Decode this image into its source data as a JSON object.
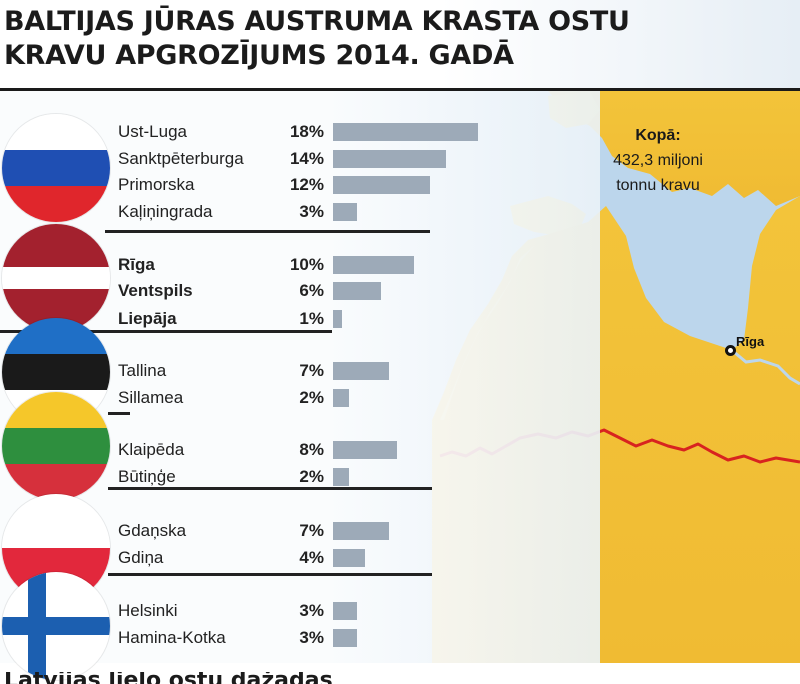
{
  "title": {
    "line1": "BALTIJAS JŪRAS AUSTRUMA KRASTA OSTU",
    "line2": "KRAVU APGROZĪJUMS 2014. GADĀ"
  },
  "total": {
    "line1": "Kopā:",
    "line2": "432,3 miljoni",
    "line3": "tonnu kravu"
  },
  "map_label": "Rīga",
  "colors": {
    "bar": "#9daab8",
    "sea": "#bcd6ec",
    "land": "#f2c63a",
    "border": "#d8231f"
  },
  "countries": [
    {
      "flag_name": "russia-flag",
      "stripes": [
        "#ffffff",
        "#1f4fb3",
        "#e0262c"
      ]
    },
    {
      "flag_name": "latvia-flag",
      "stripes": [
        "#a3212e",
        "#a3212e",
        "#ffffff",
        "#a3212e",
        "#a3212e"
      ]
    },
    {
      "flag_name": "estonia-flag",
      "stripes": [
        "#1f6fc6",
        "#1a1a1a",
        "#ffffff"
      ]
    },
    {
      "flag_name": "lithuania-flag",
      "stripes": [
        "#f5c72a",
        "#2e8f3e",
        "#d6303c"
      ]
    },
    {
      "flag_name": "poland-flag",
      "stripes": [
        "#ffffff",
        "#e2283c"
      ]
    },
    {
      "flag_name": "finland-flag",
      "stripes": [
        "#ffffff"
      ]
    }
  ],
  "chart_data": {
    "type": "bar",
    "unit": "%",
    "categories": [
      "Ust-Luga",
      "Sanktpēterburga",
      "Primorska",
      "Kaļiņingrada",
      "Rīga",
      "Ventspils",
      "Liepāja",
      "Tallina",
      "Sillamea",
      "Klaipēda",
      "Būtiņģe",
      "Gdaņska",
      "Gdiņa",
      "Helsinki",
      "Hamina-Kotka"
    ],
    "values": [
      18,
      14,
      12,
      3,
      10,
      6,
      1,
      7,
      2,
      8,
      2,
      7,
      4,
      3,
      3
    ],
    "labels": [
      "18%",
      "14%",
      "12%",
      "3%",
      "10%",
      "6%",
      "1%",
      "7%",
      "2%",
      "8%",
      "2%",
      "7%",
      "4%",
      "3%",
      "3%"
    ],
    "groups": [
      {
        "ports": [
          0,
          1,
          2,
          3
        ]
      },
      {
        "ports": [
          4,
          5,
          6
        ]
      },
      {
        "ports": [
          7,
          8
        ]
      },
      {
        "ports": [
          9,
          10
        ]
      },
      {
        "ports": [
          11,
          12
        ]
      },
      {
        "ports": [
          13,
          14
        ]
      }
    ],
    "bold_categories": [
      "Rīga",
      "Ventspils",
      "Liepāja"
    ],
    "xlim": [
      0,
      18
    ]
  },
  "footer_partial": "Latvijas lielo ostu dažādas"
}
